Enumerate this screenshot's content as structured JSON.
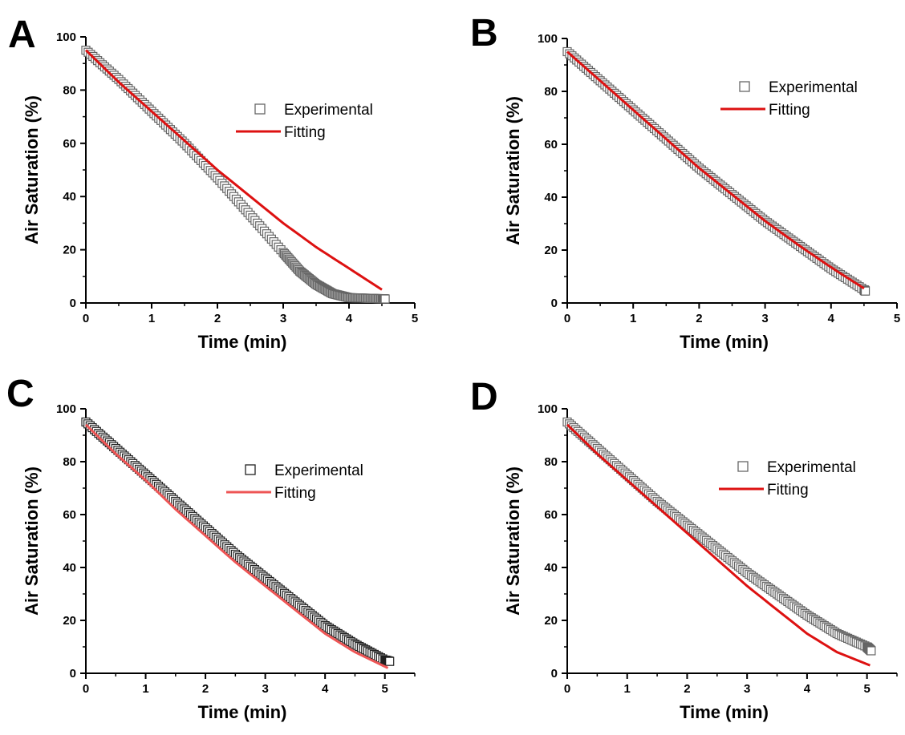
{
  "colors": {
    "experimental_marker": "#666666",
    "fit_line": "#dd1111",
    "fit_line_c": "#ee5555",
    "axis": "#000000"
  },
  "chart_data": [
    {
      "panel_label": "A",
      "type": "scatter",
      "xlabel": "Time (min)",
      "ylabel": "Air Saturation (%)",
      "xlim": [
        0,
        5
      ],
      "ylim": [
        0,
        100
      ],
      "xticks": [
        0,
        1,
        2,
        3,
        4,
        5
      ],
      "yticks": [
        0,
        20,
        40,
        60,
        80,
        100
      ],
      "legend_position": "upper-right",
      "marker_stroke": "#666666",
      "line_color": "#dd1111",
      "series": [
        {
          "name": "Experimental",
          "kind": "markers",
          "x": [
            0,
            0.5,
            1.0,
            1.5,
            2.0,
            2.5,
            3.0,
            3.25,
            3.5,
            3.75,
            4.0,
            4.25,
            4.5,
            4.55
          ],
          "y": [
            95,
            84,
            72,
            60,
            47,
            33,
            19,
            12,
            7,
            3.5,
            2,
            1.8,
            1.6,
            1.5
          ]
        },
        {
          "name": "Fitting",
          "kind": "line",
          "x": [
            0,
            0.5,
            1.0,
            1.5,
            2.0,
            2.5,
            3.0,
            3.5,
            4.0,
            4.5
          ],
          "y": [
            95,
            83,
            72,
            61,
            50,
            40,
            30,
            21,
            13,
            5
          ]
        }
      ]
    },
    {
      "panel_label": "B",
      "type": "scatter",
      "xlabel": "Time (min)",
      "ylabel": "Air Saturation (%)",
      "xlim": [
        0,
        5
      ],
      "ylim": [
        0,
        100
      ],
      "xticks": [
        0,
        1,
        2,
        3,
        4,
        5
      ],
      "yticks": [
        0,
        20,
        40,
        60,
        80,
        100
      ],
      "legend_position": "upper-right",
      "marker_stroke": "#666666",
      "line_color": "#dd1111",
      "series": [
        {
          "name": "Experimental",
          "kind": "markers",
          "x": [
            0,
            0.5,
            1.0,
            1.5,
            2.0,
            2.5,
            3.0,
            3.5,
            4.0,
            4.5,
            4.52
          ],
          "y": [
            95,
            84,
            73,
            62,
            51,
            41,
            31,
            22,
            13,
            5,
            4.5
          ]
        },
        {
          "name": "Fitting",
          "kind": "line",
          "x": [
            0,
            0.5,
            1.0,
            1.5,
            2.0,
            2.5,
            3.0,
            3.5,
            4.0,
            4.5
          ],
          "y": [
            95,
            84,
            73,
            62,
            51,
            41,
            31,
            22,
            13.5,
            5.5
          ]
        }
      ]
    },
    {
      "panel_label": "C",
      "type": "scatter",
      "xlabel": "Time (min)",
      "ylabel": "Air Saturation (%)",
      "xlim": [
        0,
        5.5
      ],
      "ylim": [
        0,
        100
      ],
      "xticks": [
        0,
        1,
        2,
        3,
        4,
        5
      ],
      "yticks": [
        0,
        20,
        40,
        60,
        80,
        100
      ],
      "legend_position": "upper-right",
      "marker_stroke": "#222222",
      "line_color": "#ee5555",
      "series": [
        {
          "name": "Experimental",
          "kind": "markers",
          "x": [
            0,
            0.5,
            1.0,
            1.5,
            2.0,
            2.5,
            3.0,
            3.5,
            4.0,
            4.5,
            5.0,
            5.08
          ],
          "y": [
            95,
            85,
            75,
            65,
            55,
            45,
            36,
            27,
            18,
            11,
            5,
            4.5
          ]
        },
        {
          "name": "Fitting",
          "kind": "line",
          "x": [
            0,
            0.5,
            1.0,
            1.5,
            2.0,
            2.5,
            3.0,
            3.5,
            4.0,
            4.5,
            5.05
          ],
          "y": [
            94,
            83,
            73,
            62,
            52,
            42,
            33,
            24,
            15,
            8,
            2
          ]
        }
      ]
    },
    {
      "panel_label": "D",
      "type": "scatter",
      "xlabel": "Time (min)",
      "ylabel": "Air Saturation (%)",
      "xlim": [
        0,
        5.5
      ],
      "ylim": [
        0,
        100
      ],
      "xticks": [
        0,
        1,
        2,
        3,
        4,
        5
      ],
      "yticks": [
        0,
        20,
        40,
        60,
        80,
        100
      ],
      "legend_position": "upper-right",
      "marker_stroke": "#666666",
      "line_color": "#dd1111",
      "series": [
        {
          "name": "Experimental",
          "kind": "markers",
          "x": [
            0,
            0.5,
            1.0,
            1.5,
            2.0,
            2.5,
            3.0,
            3.5,
            4.0,
            4.5,
            5.0,
            5.07
          ],
          "y": [
            95,
            85,
            75,
            65,
            56,
            47,
            38,
            30,
            22,
            15,
            10,
            8.5
          ]
        },
        {
          "name": "Fitting",
          "kind": "line",
          "x": [
            0,
            0.5,
            1.0,
            1.5,
            2.0,
            2.5,
            3.0,
            3.5,
            4.0,
            4.5,
            5.05
          ],
          "y": [
            94,
            83,
            73,
            63,
            53,
            43,
            33,
            24,
            15,
            8,
            3
          ]
        }
      ]
    }
  ]
}
